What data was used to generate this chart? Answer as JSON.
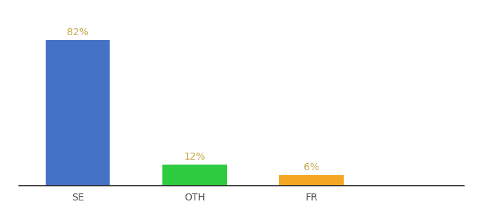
{
  "categories": [
    "SE",
    "OTH",
    "FR"
  ],
  "values": [
    82,
    12,
    6
  ],
  "bar_colors": [
    "#4472c4",
    "#2ecc40",
    "#f5a623"
  ],
  "labels": [
    "82%",
    "12%",
    "6%"
  ],
  "background_color": "#ffffff",
  "ylim": [
    0,
    95
  ],
  "bar_width": 0.55,
  "label_fontsize": 10,
  "tick_fontsize": 10,
  "label_color": "#c8a84b",
  "x_positions": [
    0.5,
    1.5,
    2.5
  ]
}
